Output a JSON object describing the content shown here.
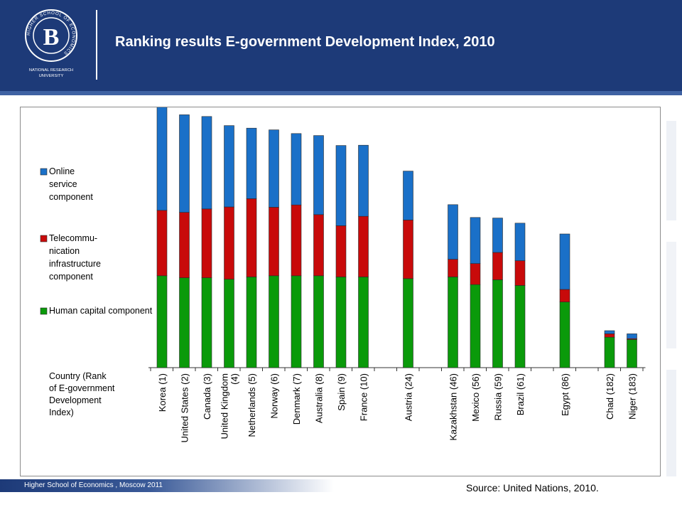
{
  "slide": {
    "title": "Ranking results E-government Development Index, 2010",
    "footer": "Higher School of Economics , Moscow 2011",
    "source": "Source: United Nations, 2010.",
    "logo": {
      "icon": "hse-logo-icon",
      "ring_text": "HIGHER SCHOOL OF ECONOMICS",
      "monogram": "В",
      "caption_line1": "NATIONAL RESEARCH",
      "caption_line2": "UNIVERSITY"
    },
    "colors": {
      "header": "#1d3a78",
      "stripe": "#3f62a3"
    }
  },
  "chart_data": {
    "type": "bar",
    "stacked": true,
    "categories": [
      "Korea  (1)",
      "United States (2)",
      "Canada (3)",
      "United Kingdom (4)",
      "Netherlands (5)",
      "Norway (6)",
      "Denmark (7)",
      "Australia (8)",
      "Spain (9)",
      "France (10)",
      "Austria (24)",
      "Kazakhstan (46)",
      "Mexico (56)",
      "Russia (59)",
      "Brazil (61)",
      "Egypt (86)",
      "Chad (182)",
      "Niger (183)"
    ],
    "category_lines": [
      [
        "Korea  (1)"
      ],
      [
        "United States (2)"
      ],
      [
        "Canada (3)"
      ],
      [
        "United Kingdom",
        "(4)"
      ],
      [
        "Netherlands (5)"
      ],
      [
        "Norway (6)"
      ],
      [
        "Denmark (7)"
      ],
      [
        "Australia (8)"
      ],
      [
        "Spain (9)"
      ],
      [
        "France (10)"
      ],
      [
        "Austria (24)"
      ],
      [
        "Kazakhstan (46)"
      ],
      [
        "Mexico (56)"
      ],
      [
        "Russia (59)"
      ],
      [
        "Brazil (61)"
      ],
      [
        "Egypt (86)"
      ],
      [
        "Chad (182)"
      ],
      [
        "Niger (183)"
      ]
    ],
    "slots": [
      0,
      1,
      2,
      3,
      4,
      5,
      6,
      7,
      8,
      9,
      11,
      13,
      14,
      15,
      16,
      18,
      20,
      21
    ],
    "series": [
      {
        "name": "Human capital component",
        "color": "#0a9a0a",
        "values": [
          0.323,
          0.316,
          0.316,
          0.311,
          0.319,
          0.323,
          0.323,
          0.323,
          0.319,
          0.319,
          0.313,
          0.319,
          0.292,
          0.309,
          0.289,
          0.231,
          0.107,
          0.099
        ]
      },
      {
        "name": "Telecommu-\nnication\ninfrastructure\ncomponent",
        "color": "#c80a0a",
        "values": [
          0.23,
          0.23,
          0.242,
          0.254,
          0.275,
          0.241,
          0.249,
          0.215,
          0.18,
          0.213,
          0.206,
          0.062,
          0.074,
          0.096,
          0.087,
          0.044,
          0.012,
          0.003
        ]
      },
      {
        "name": "Online\nservice\ncomponent",
        "color": "#1a70c8",
        "values": [
          0.363,
          0.343,
          0.325,
          0.286,
          0.248,
          0.272,
          0.251,
          0.278,
          0.282,
          0.25,
          0.172,
          0.192,
          0.162,
          0.121,
          0.132,
          0.195,
          0.011,
          0.017
        ]
      }
    ],
    "legend_order": [
      2,
      1,
      0
    ],
    "axis_caption": "Country (Rank\nof E-government\nDevelopment\nIndex)",
    "ylim": [
      0,
      1
    ],
    "grid": false,
    "legend_position": "left"
  }
}
